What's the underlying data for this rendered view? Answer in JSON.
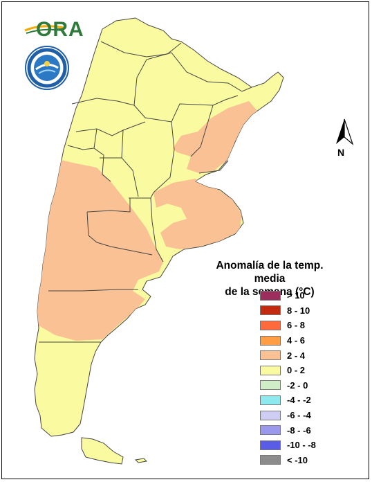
{
  "logo": {
    "text": "ORA",
    "brand_color": "#2f7a3b",
    "accent_color": "#f2a900"
  },
  "seal": {
    "name": "smn-seal"
  },
  "north_arrow": {
    "label": "N"
  },
  "legend": {
    "title_line1": "Anomalía de la temp. media",
    "title_line2": "de la semana (°C)",
    "items": [
      {
        "label": "> 10",
        "color": "#9c2d5c"
      },
      {
        "label": "8 - 10",
        "color": "#c22b0f"
      },
      {
        "label": "6 - 8",
        "color": "#ff6a3d"
      },
      {
        "label": "4 - 6",
        "color": "#ff9e45"
      },
      {
        "label": "2 - 4",
        "color": "#f9c194"
      },
      {
        "label": "0 - 2",
        "color": "#fafaa0"
      },
      {
        "label": "-2 - 0",
        "color": "#cfeec7"
      },
      {
        "label": "-4 - -2",
        "color": "#8de9ee"
      },
      {
        "label": "-6 - -4",
        "color": "#cfcdf4"
      },
      {
        "label": "-8 - -6",
        "color": "#9a99ee"
      },
      {
        "label": "-10 - -8",
        "color": "#5a5be6"
      },
      {
        "label": "< -10",
        "color": "#8c8c8c"
      }
    ]
  },
  "map": {
    "land_color": "#fafaa0",
    "anomaly_color": "#f9c194",
    "border_color": "#444444"
  }
}
